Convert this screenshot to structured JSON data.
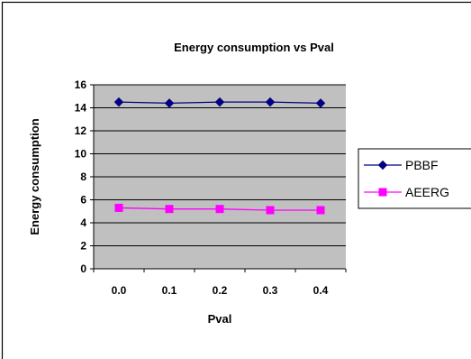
{
  "chart_data": {
    "type": "line",
    "title": "Energy consumption  vs Pval",
    "xlabel": "Pval",
    "ylabel": "Energy consumption",
    "categories": [
      "0.0",
      "0.1",
      "0.2",
      "0.3",
      "0.4"
    ],
    "ylim": [
      0,
      16
    ],
    "yticks": [
      "0",
      "2",
      "4",
      "6",
      "8",
      "10",
      "12",
      "14",
      "16"
    ],
    "grid": true,
    "legend_position": "right",
    "plot_background": "#c0c0c0",
    "series": [
      {
        "name": "PBBF",
        "values": [
          14.5,
          14.4,
          14.5,
          14.5,
          14.4
        ],
        "color": "#000080",
        "marker": "diamond"
      },
      {
        "name": "AEERG",
        "values": [
          5.3,
          5.2,
          5.2,
          5.1,
          5.1
        ],
        "color": "#ff00ff",
        "marker": "square"
      }
    ]
  }
}
